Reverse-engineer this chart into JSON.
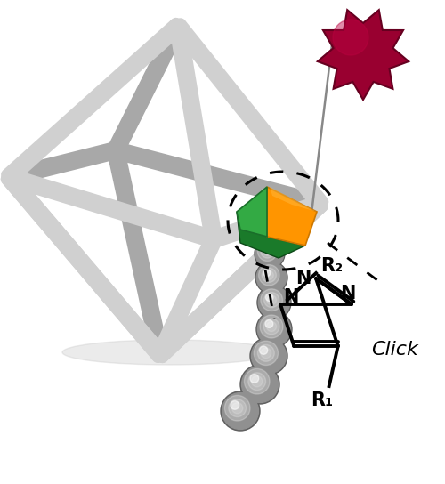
{
  "bg_color": "#ffffff",
  "octahedron_color": "#d0d0d0",
  "octahedron_edge": "#b8b8b8",
  "octahedron_dark": "#a8a8a8",
  "sphere_base": "#909090",
  "sphere_dark": "#606060",
  "orange_color": "#FF9500",
  "orange_dark": "#cc7700",
  "green_color": "#33aa44",
  "green_dark": "#1a6e2a",
  "darkgreen_color": "#1a7a2a",
  "darkgreen_dark": "#0d4a18",
  "crimson_color": "#990030",
  "crimson_mid": "#bb0040",
  "crimson_dark": "#660020",
  "figsize": [
    5.0,
    5.44
  ],
  "dpi": 100,
  "click_label": "Click",
  "R1_label": "R₁",
  "R2_label": "R₂"
}
